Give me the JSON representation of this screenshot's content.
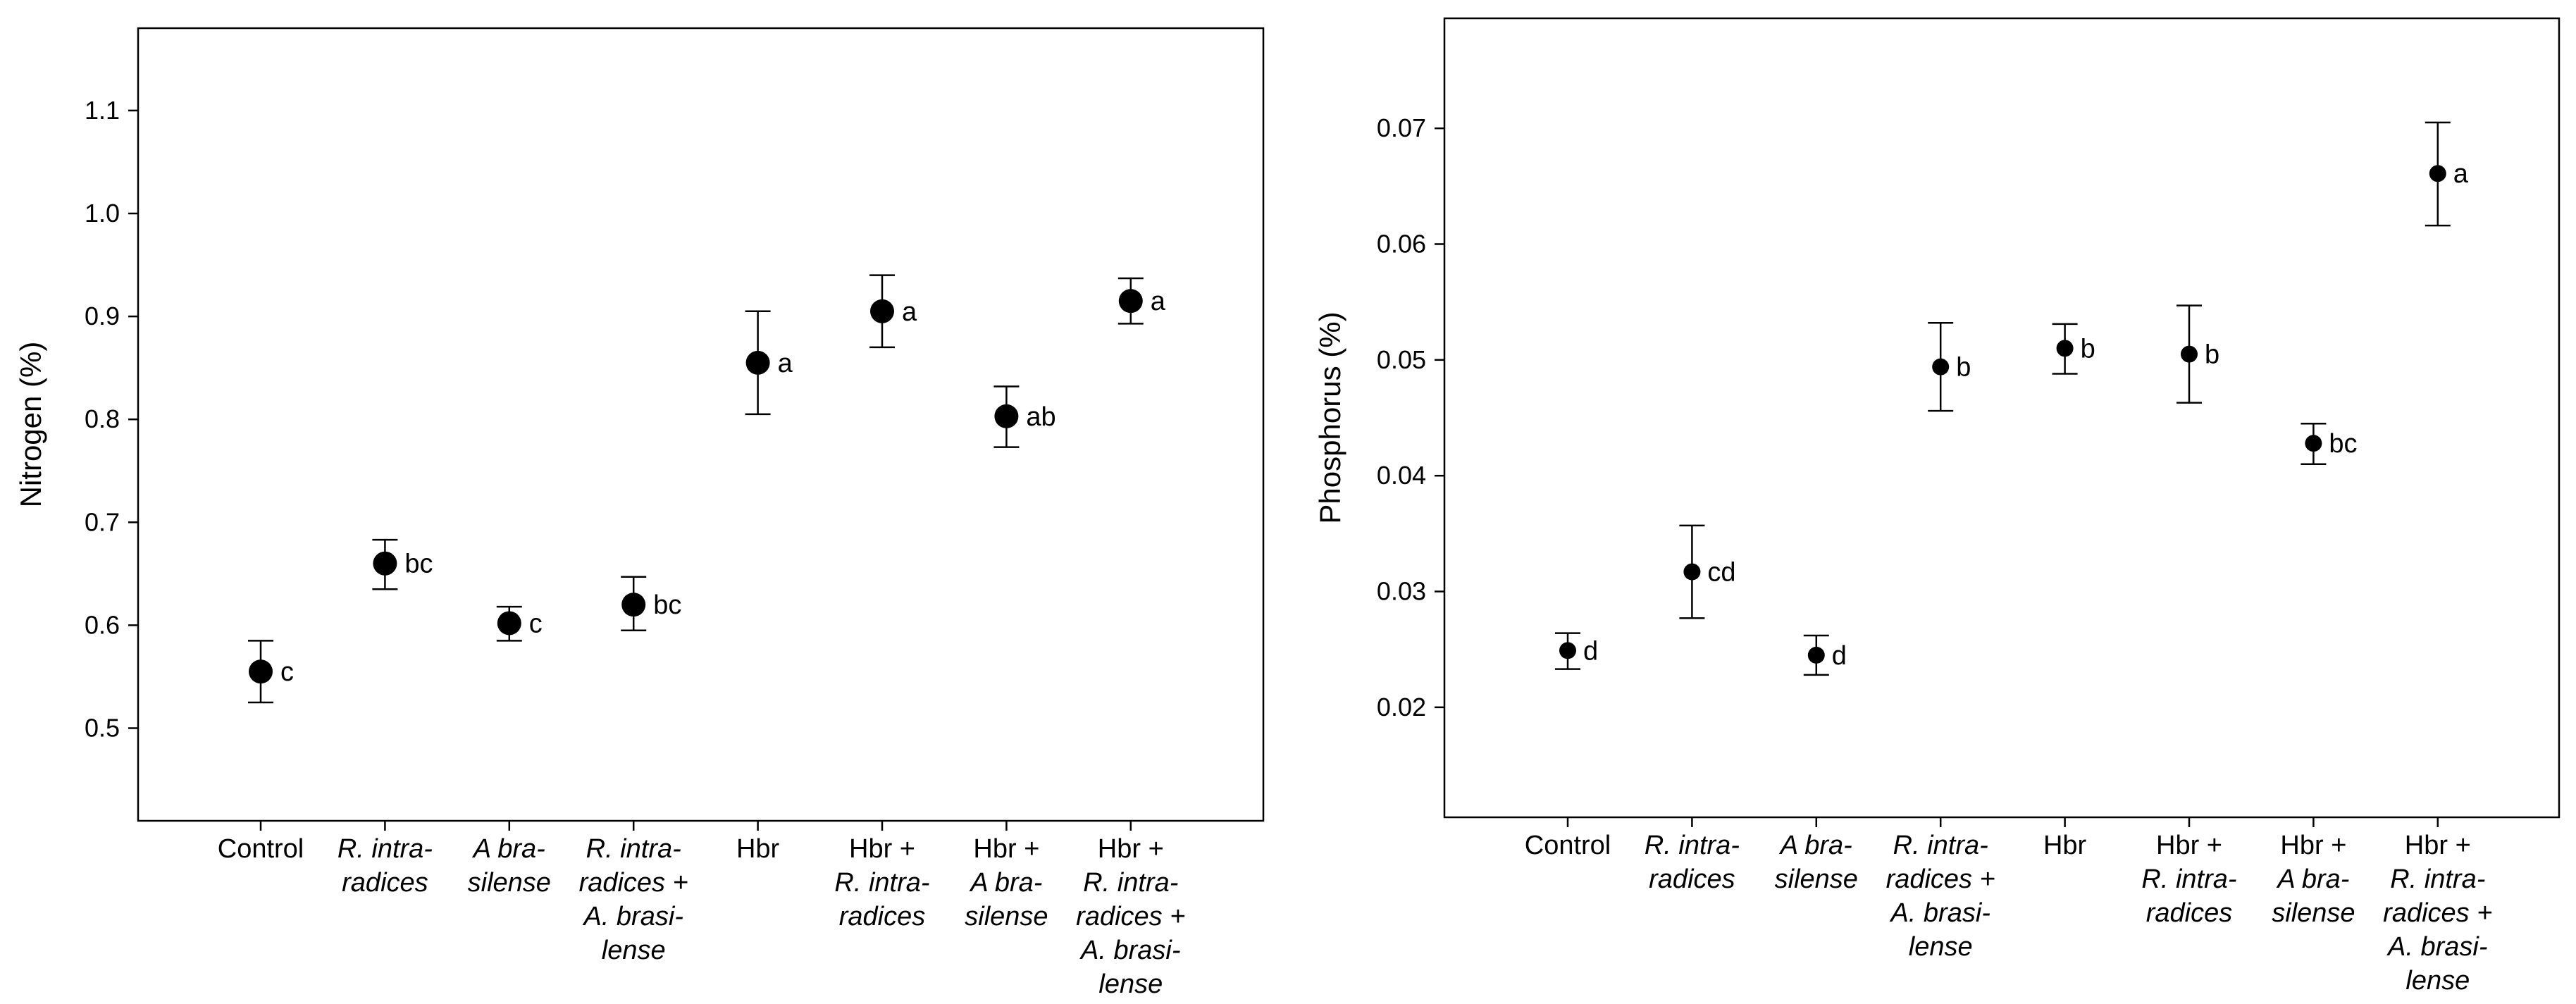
{
  "chart_data": [
    {
      "type": "scatter",
      "ylabel": "Nitrogen (%)",
      "ylim": [
        0.41,
        1.18
      ],
      "yticks": [
        "0.5",
        "0.6",
        "0.7",
        "0.8",
        "0.9",
        "1.0",
        "1.1"
      ],
      "categories": [
        [
          {
            "t": "Control",
            "i": false
          }
        ],
        [
          {
            "t": "R. intra-",
            "i": true
          },
          {
            "t": "radices",
            "i": true
          }
        ],
        [
          {
            "t": "A bra-",
            "i": true
          },
          {
            "t": "silense",
            "i": true
          }
        ],
        [
          {
            "t": "R. intra-",
            "i": true
          },
          {
            "t": "radices +",
            "i": true
          },
          {
            "t": "A. brasi-",
            "i": true
          },
          {
            "t": "lense",
            "i": true
          }
        ],
        [
          {
            "t": "Hbr",
            "i": false
          }
        ],
        [
          {
            "t": "Hbr +",
            "i": false
          },
          {
            "t": "R. intra-",
            "i": true
          },
          {
            "t": "radices",
            "i": true
          }
        ],
        [
          {
            "t": "Hbr +",
            "i": false
          },
          {
            "t": "A bra-",
            "i": true
          },
          {
            "t": "silense",
            "i": true
          }
        ],
        [
          {
            "t": "Hbr +",
            "i": false
          },
          {
            "t": "R. intra-",
            "i": true
          },
          {
            "t": "radices +",
            "i": true
          },
          {
            "t": "A. brasi-",
            "i": true
          },
          {
            "t": "lense",
            "i": true
          }
        ]
      ],
      "values": [
        0.555,
        0.66,
        0.602,
        0.62,
        0.855,
        0.905,
        0.803,
        0.915
      ],
      "err_low": [
        0.525,
        0.635,
        0.585,
        0.595,
        0.805,
        0.87,
        0.773,
        0.893
      ],
      "err_high": [
        0.585,
        0.683,
        0.618,
        0.647,
        0.905,
        0.94,
        0.832,
        0.937
      ],
      "labels": [
        "c",
        "bc",
        "c",
        "bc",
        "a",
        "a",
        "ab",
        "a"
      ]
    },
    {
      "type": "scatter",
      "ylabel": "Phosphorus (%)",
      "ylim": [
        0.0105,
        0.0795
      ],
      "yticks": [
        "0.02",
        "0.03",
        "0.04",
        "0.05",
        "0.06",
        "0.07"
      ],
      "categories": [
        [
          {
            "t": "Control",
            "i": false
          }
        ],
        [
          {
            "t": "R. intra-",
            "i": true
          },
          {
            "t": "radices",
            "i": true
          }
        ],
        [
          {
            "t": "A bra-",
            "i": true
          },
          {
            "t": "silense",
            "i": true
          }
        ],
        [
          {
            "t": "R. intra-",
            "i": true
          },
          {
            "t": "radices +",
            "i": true
          },
          {
            "t": "A. brasi-",
            "i": true
          },
          {
            "t": "lense",
            "i": true
          }
        ],
        [
          {
            "t": "Hbr",
            "i": false
          }
        ],
        [
          {
            "t": "Hbr +",
            "i": false
          },
          {
            "t": "R. intra-",
            "i": true
          },
          {
            "t": "radices",
            "i": true
          }
        ],
        [
          {
            "t": "Hbr +",
            "i": false
          },
          {
            "t": "A bra-",
            "i": true
          },
          {
            "t": "silense",
            "i": true
          }
        ],
        [
          {
            "t": "Hbr +",
            "i": false
          },
          {
            "t": "R. intra-",
            "i": true
          },
          {
            "t": "radices +",
            "i": true
          },
          {
            "t": "A. brasi-",
            "i": true
          },
          {
            "t": "lense",
            "i": true
          }
        ]
      ],
      "values": [
        0.0249,
        0.0317,
        0.0245,
        0.0494,
        0.051,
        0.0505,
        0.0428,
        0.0661
      ],
      "err_low": [
        0.0233,
        0.0277,
        0.0228,
        0.0456,
        0.0488,
        0.0463,
        0.041,
        0.0616
      ],
      "err_high": [
        0.0264,
        0.0357,
        0.0262,
        0.0532,
        0.0531,
        0.0547,
        0.0445,
        0.0705
      ],
      "labels": [
        "d",
        "cd",
        "d",
        "b",
        "b",
        "b",
        "bc",
        "a"
      ]
    }
  ]
}
